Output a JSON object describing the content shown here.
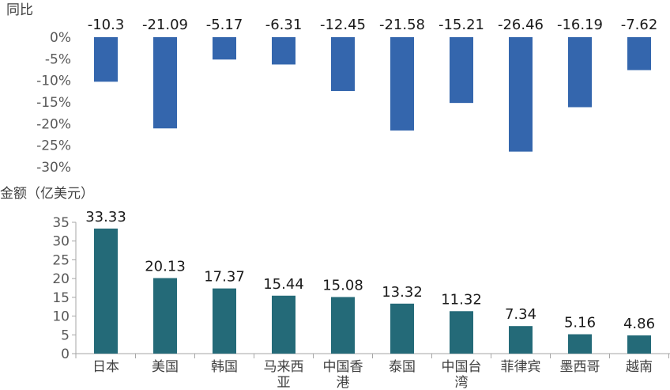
{
  "chart_data": [
    {
      "type": "bar",
      "ylabel": "同比",
      "categories": [
        "日本",
        "美国",
        "韩国",
        "马来西亚",
        "中国香港",
        "泰国",
        "中国台湾",
        "菲律宾",
        "墨西哥",
        "越南"
      ],
      "values": [
        -10.3,
        -21.09,
        -5.17,
        -6.31,
        -12.45,
        -21.58,
        -15.21,
        -26.46,
        -16.19,
        -7.62
      ],
      "value_labels": [
        "-10.3",
        "-21.09",
        "-5.17",
        "-6.31",
        "-12.45",
        "-21.58",
        "-15.21",
        "-26.46",
        "-16.19",
        "-7.62"
      ],
      "yticks": [
        0,
        -5,
        -10,
        -15,
        -20,
        -25,
        -30
      ],
      "ytick_labels": [
        "0%",
        "-5%",
        "-10%",
        "-15%",
        "-20%",
        "-25%",
        "-30%"
      ],
      "ylim": [
        -30,
        0
      ],
      "color": "#3466ad"
    },
    {
      "type": "bar",
      "ylabel": "金额（亿美元）",
      "categories": [
        "日本",
        "美国",
        "韩国",
        "马来西亚",
        "中国香港",
        "泰国",
        "中国台湾",
        "菲律宾",
        "墨西哥",
        "越南"
      ],
      "category_lines": [
        [
          "日本"
        ],
        [
          "美国"
        ],
        [
          "韩国"
        ],
        [
          "马来西",
          "亚"
        ],
        [
          "中国香",
          "港"
        ],
        [
          "泰国"
        ],
        [
          "中国台",
          "湾"
        ],
        [
          "菲律宾"
        ],
        [
          "墨西哥"
        ],
        [
          "越南"
        ]
      ],
      "values": [
        33.33,
        20.13,
        17.37,
        15.44,
        15.08,
        13.32,
        11.32,
        7.34,
        5.16,
        4.86
      ],
      "value_labels": [
        "33.33",
        "20.13",
        "17.37",
        "15.44",
        "15.08",
        "13.32",
        "11.32",
        "7.34",
        "5.16",
        "4.86"
      ],
      "yticks": [
        0,
        5,
        10,
        15,
        20,
        25,
        30,
        35
      ],
      "ytick_labels": [
        "0",
        "5",
        "10",
        "15",
        "20",
        "25",
        "30",
        "35"
      ],
      "ylim": [
        0,
        35
      ],
      "color": "#246a78"
    }
  ]
}
